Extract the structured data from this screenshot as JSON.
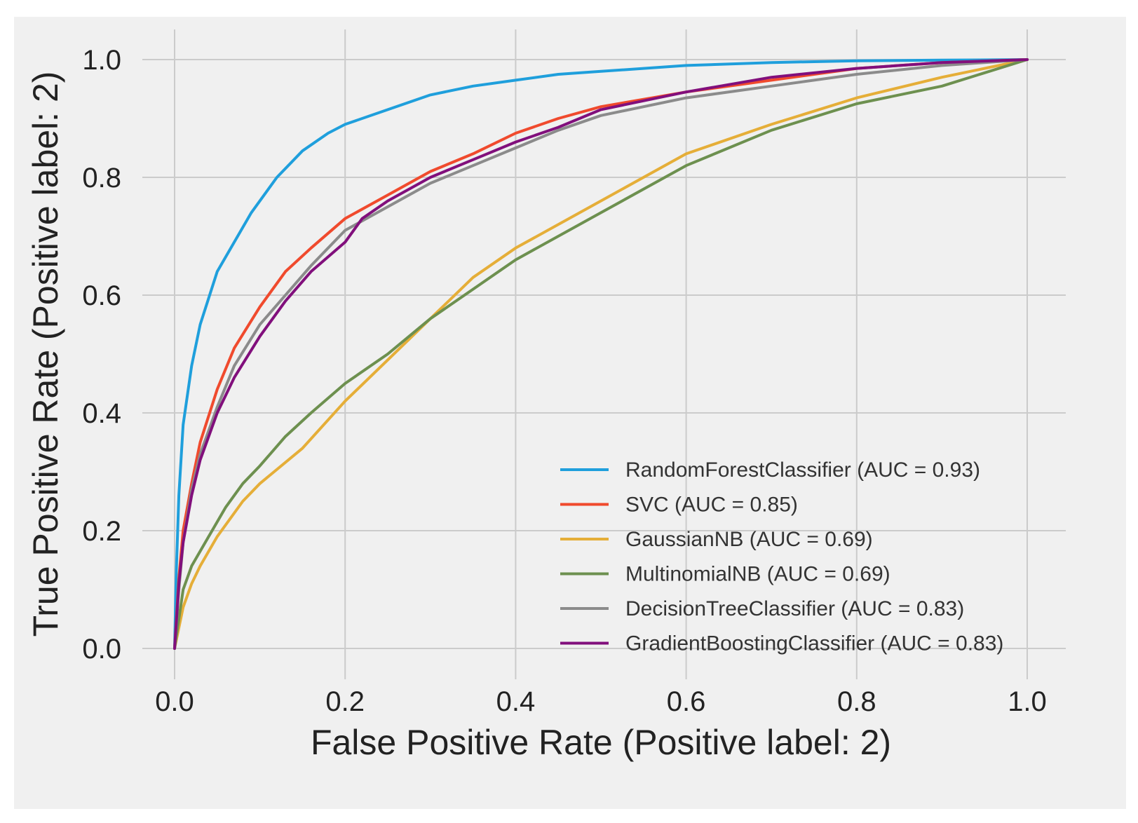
{
  "chart_data": {
    "type": "line",
    "title": "",
    "xlabel": "False Positive Rate (Positive label: 2)",
    "ylabel": "True Positive Rate (Positive label: 2)",
    "xlim": [
      0.0,
      1.0
    ],
    "ylim": [
      0.0,
      1.0
    ],
    "xticks": [
      "0.0",
      "0.2",
      "0.4",
      "0.6",
      "0.8",
      "1.0"
    ],
    "yticks": [
      "0.0",
      "0.2",
      "0.4",
      "0.6",
      "0.8",
      "1.0"
    ],
    "grid": true,
    "legend_position": "lower-right",
    "series": [
      {
        "name": "RandomForestClassifier (AUC = 0.93)",
        "color": "#1f9fdc",
        "x": [
          0,
          0.002,
          0.005,
          0.01,
          0.02,
          0.03,
          0.05,
          0.07,
          0.09,
          0.12,
          0.15,
          0.18,
          0.2,
          0.25,
          0.3,
          0.35,
          0.4,
          0.45,
          0.5,
          0.6,
          0.7,
          0.8,
          0.9,
          1.0
        ],
        "y": [
          0,
          0.13,
          0.26,
          0.38,
          0.48,
          0.55,
          0.64,
          0.69,
          0.74,
          0.8,
          0.845,
          0.875,
          0.89,
          0.915,
          0.94,
          0.955,
          0.965,
          0.975,
          0.98,
          0.99,
          0.995,
          0.998,
          0.999,
          1.0
        ]
      },
      {
        "name": "SVC (AUC = 0.85)",
        "color": "#f04a2d",
        "x": [
          0,
          0.005,
          0.01,
          0.02,
          0.03,
          0.05,
          0.07,
          0.1,
          0.13,
          0.16,
          0.2,
          0.25,
          0.3,
          0.35,
          0.4,
          0.45,
          0.5,
          0.6,
          0.7,
          0.8,
          0.9,
          1.0
        ],
        "y": [
          0,
          0.12,
          0.2,
          0.28,
          0.35,
          0.44,
          0.51,
          0.58,
          0.64,
          0.68,
          0.73,
          0.77,
          0.81,
          0.84,
          0.875,
          0.9,
          0.92,
          0.945,
          0.965,
          0.985,
          0.995,
          1.0
        ]
      },
      {
        "name": "GaussianNB (AUC = 0.69)",
        "color": "#e5ae38",
        "x": [
          0,
          0.01,
          0.02,
          0.03,
          0.05,
          0.08,
          0.1,
          0.15,
          0.2,
          0.25,
          0.3,
          0.35,
          0.4,
          0.5,
          0.6,
          0.7,
          0.8,
          0.9,
          1.0
        ],
        "y": [
          0,
          0.07,
          0.11,
          0.14,
          0.19,
          0.25,
          0.28,
          0.34,
          0.42,
          0.49,
          0.56,
          0.63,
          0.68,
          0.76,
          0.84,
          0.89,
          0.935,
          0.97,
          1.0
        ]
      },
      {
        "name": "MultinomialNB (AUC = 0.69)",
        "color": "#6d904f",
        "x": [
          0,
          0.01,
          0.02,
          0.04,
          0.06,
          0.08,
          0.1,
          0.13,
          0.16,
          0.2,
          0.25,
          0.3,
          0.35,
          0.4,
          0.5,
          0.6,
          0.7,
          0.8,
          0.9,
          1.0
        ],
        "y": [
          0,
          0.1,
          0.14,
          0.19,
          0.24,
          0.28,
          0.31,
          0.36,
          0.4,
          0.45,
          0.5,
          0.56,
          0.61,
          0.66,
          0.74,
          0.82,
          0.88,
          0.925,
          0.955,
          1.0
        ]
      },
      {
        "name": "DecisionTreeClassifier (AUC = 0.83)",
        "color": "#8b8b8b",
        "x": [
          0,
          0.005,
          0.01,
          0.02,
          0.03,
          0.05,
          0.07,
          0.1,
          0.13,
          0.16,
          0.2,
          0.25,
          0.3,
          0.35,
          0.4,
          0.45,
          0.5,
          0.6,
          0.7,
          0.8,
          0.9,
          1.0
        ],
        "y": [
          0,
          0.1,
          0.18,
          0.27,
          0.33,
          0.41,
          0.48,
          0.55,
          0.6,
          0.65,
          0.71,
          0.75,
          0.79,
          0.82,
          0.85,
          0.88,
          0.905,
          0.935,
          0.955,
          0.975,
          0.99,
          1.0
        ]
      },
      {
        "name": "GradientBoostingClassifier (AUC = 0.83)",
        "color": "#810f7c",
        "x": [
          0,
          0.005,
          0.01,
          0.02,
          0.03,
          0.05,
          0.07,
          0.1,
          0.13,
          0.16,
          0.2,
          0.22,
          0.25,
          0.3,
          0.35,
          0.4,
          0.45,
          0.5,
          0.6,
          0.7,
          0.8,
          0.9,
          1.0
        ],
        "y": [
          0,
          0.11,
          0.18,
          0.26,
          0.32,
          0.4,
          0.46,
          0.53,
          0.59,
          0.64,
          0.69,
          0.73,
          0.76,
          0.8,
          0.83,
          0.86,
          0.885,
          0.915,
          0.945,
          0.97,
          0.985,
          0.995,
          1.0
        ]
      }
    ]
  }
}
